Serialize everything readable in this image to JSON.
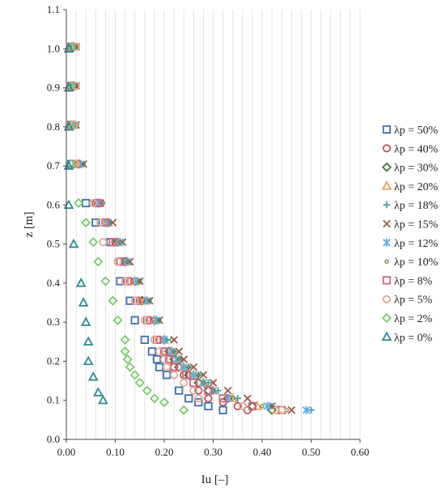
{
  "chart_data": {
    "type": "scatter",
    "xlabel": "Iu [–]",
    "ylabel": "z [m]",
    "xlim": [
      0,
      0.6
    ],
    "ylim": [
      0,
      1.1
    ],
    "xticks": [
      "0.00",
      "0.10",
      "0.20",
      "0.30",
      "0.40",
      "0.50",
      "0.60"
    ],
    "yticks": [
      "0.0",
      "0.1",
      "0.2",
      "0.3",
      "0.4",
      "0.5",
      "0.6",
      "0.7",
      "0.8",
      "0.9",
      "1.0",
      "1.1"
    ],
    "grid": "vertical",
    "legend_position": "right",
    "series": [
      {
        "name": "λp = 50%",
        "marker": "square",
        "color": "#3d6fb0",
        "points": [
          [
            0.01,
            1.005
          ],
          [
            0.01,
            0.905
          ],
          [
            0.01,
            0.805
          ],
          [
            0.01,
            0.705
          ],
          [
            0.04,
            0.605
          ],
          [
            0.06,
            0.555
          ],
          [
            0.09,
            0.505
          ],
          [
            0.11,
            0.455
          ],
          [
            0.11,
            0.405
          ],
          [
            0.13,
            0.355
          ],
          [
            0.14,
            0.305
          ],
          [
            0.16,
            0.255
          ],
          [
            0.175,
            0.225
          ],
          [
            0.185,
            0.205
          ],
          [
            0.19,
            0.185
          ],
          [
            0.205,
            0.165
          ],
          [
            0.23,
            0.125
          ],
          [
            0.25,
            0.105
          ],
          [
            0.27,
            0.095
          ],
          [
            0.29,
            0.085
          ],
          [
            0.32,
            0.075
          ]
        ]
      },
      {
        "name": "λp = 40%",
        "marker": "circle",
        "color": "#c0505a",
        "points": [
          [
            0.01,
            1.005
          ],
          [
            0.01,
            0.905
          ],
          [
            0.01,
            0.805
          ],
          [
            0.02,
            0.705
          ],
          [
            0.06,
            0.605
          ],
          [
            0.08,
            0.555
          ],
          [
            0.1,
            0.505
          ],
          [
            0.12,
            0.455
          ],
          [
            0.13,
            0.405
          ],
          [
            0.15,
            0.355
          ],
          [
            0.17,
            0.305
          ],
          [
            0.19,
            0.255
          ],
          [
            0.2,
            0.225
          ],
          [
            0.21,
            0.205
          ],
          [
            0.22,
            0.185
          ],
          [
            0.24,
            0.165
          ],
          [
            0.27,
            0.125
          ],
          [
            0.29,
            0.105
          ],
          [
            0.32,
            0.095
          ],
          [
            0.35,
            0.085
          ],
          [
            0.37,
            0.075
          ]
        ]
      },
      {
        "name": "λp = 30%",
        "marker": "diamond",
        "color": "#3d7a2e",
        "points": [
          [
            0.015,
            1.005
          ],
          [
            0.015,
            0.905
          ],
          [
            0.015,
            0.805
          ],
          [
            0.025,
            0.705
          ],
          [
            0.065,
            0.605
          ],
          [
            0.085,
            0.555
          ],
          [
            0.105,
            0.505
          ],
          [
            0.12,
            0.455
          ],
          [
            0.14,
            0.405
          ],
          [
            0.155,
            0.355
          ],
          [
            0.18,
            0.305
          ],
          [
            0.2,
            0.255
          ],
          [
            0.21,
            0.225
          ],
          [
            0.22,
            0.205
          ],
          [
            0.23,
            0.185
          ],
          [
            0.25,
            0.165
          ],
          [
            0.27,
            0.145
          ],
          [
            0.29,
            0.125
          ],
          [
            0.33,
            0.105
          ],
          [
            0.38,
            0.085
          ],
          [
            0.42,
            0.075
          ]
        ]
      },
      {
        "name": "λp = 20%",
        "marker": "triangle",
        "color": "#e8a060",
        "points": [
          [
            0.015,
            1.005
          ],
          [
            0.015,
            0.905
          ],
          [
            0.015,
            0.805
          ],
          [
            0.025,
            0.705
          ],
          [
            0.065,
            0.605
          ],
          [
            0.085,
            0.555
          ],
          [
            0.105,
            0.505
          ],
          [
            0.125,
            0.455
          ],
          [
            0.14,
            0.405
          ],
          [
            0.16,
            0.355
          ],
          [
            0.18,
            0.305
          ],
          [
            0.2,
            0.255
          ],
          [
            0.215,
            0.225
          ],
          [
            0.23,
            0.205
          ],
          [
            0.24,
            0.185
          ],
          [
            0.26,
            0.165
          ],
          [
            0.28,
            0.145
          ],
          [
            0.3,
            0.125
          ],
          [
            0.34,
            0.105
          ],
          [
            0.39,
            0.085
          ],
          [
            0.43,
            0.075
          ]
        ]
      },
      {
        "name": "λp = 18%",
        "marker": "plus",
        "color": "#4aa0a0",
        "points": [
          [
            0.015,
            1.005
          ],
          [
            0.015,
            0.905
          ],
          [
            0.02,
            0.805
          ],
          [
            0.03,
            0.705
          ],
          [
            0.07,
            0.605
          ],
          [
            0.09,
            0.555
          ],
          [
            0.11,
            0.505
          ],
          [
            0.125,
            0.455
          ],
          [
            0.145,
            0.405
          ],
          [
            0.165,
            0.355
          ],
          [
            0.185,
            0.305
          ],
          [
            0.205,
            0.255
          ],
          [
            0.22,
            0.225
          ],
          [
            0.235,
            0.205
          ],
          [
            0.25,
            0.185
          ],
          [
            0.27,
            0.165
          ],
          [
            0.29,
            0.145
          ],
          [
            0.31,
            0.125
          ],
          [
            0.35,
            0.105
          ],
          [
            0.42,
            0.085
          ],
          [
            0.5,
            0.075
          ]
        ]
      },
      {
        "name": "λp = 15%",
        "marker": "x",
        "color": "#9a5a4a",
        "points": [
          [
            0.02,
            1.005
          ],
          [
            0.02,
            0.905
          ],
          [
            0.02,
            0.805
          ],
          [
            0.035,
            0.705
          ],
          [
            0.07,
            0.605
          ],
          [
            0.095,
            0.555
          ],
          [
            0.115,
            0.505
          ],
          [
            0.13,
            0.455
          ],
          [
            0.15,
            0.405
          ],
          [
            0.17,
            0.355
          ],
          [
            0.19,
            0.305
          ],
          [
            0.22,
            0.255
          ],
          [
            0.23,
            0.225
          ],
          [
            0.24,
            0.205
          ],
          [
            0.26,
            0.185
          ],
          [
            0.28,
            0.165
          ],
          [
            0.3,
            0.145
          ],
          [
            0.33,
            0.125
          ],
          [
            0.37,
            0.105
          ],
          [
            0.42,
            0.085
          ],
          [
            0.46,
            0.075
          ]
        ]
      },
      {
        "name": "λp = 12%",
        "marker": "asterisk",
        "color": "#5bb0e8",
        "points": [
          [
            0.015,
            1.005
          ],
          [
            0.015,
            0.905
          ],
          [
            0.015,
            0.805
          ],
          [
            0.03,
            0.705
          ],
          [
            0.065,
            0.605
          ],
          [
            0.085,
            0.555
          ],
          [
            0.11,
            0.505
          ],
          [
            0.125,
            0.455
          ],
          [
            0.145,
            0.405
          ],
          [
            0.165,
            0.355
          ],
          [
            0.185,
            0.305
          ],
          [
            0.2,
            0.255
          ],
          [
            0.215,
            0.225
          ],
          [
            0.225,
            0.205
          ],
          [
            0.24,
            0.185
          ],
          [
            0.26,
            0.165
          ],
          [
            0.28,
            0.145
          ],
          [
            0.3,
            0.125
          ],
          [
            0.33,
            0.105
          ],
          [
            0.41,
            0.085
          ],
          [
            0.49,
            0.075
          ]
        ]
      },
      {
        "name": "λp = 10%",
        "marker": "dot",
        "color": "#6a7a2a",
        "points": [
          [
            0.02,
            1.005
          ],
          [
            0.02,
            0.905
          ],
          [
            0.02,
            0.805
          ],
          [
            0.035,
            0.705
          ],
          [
            0.075,
            0.605
          ],
          [
            0.09,
            0.555
          ],
          [
            0.11,
            0.505
          ],
          [
            0.125,
            0.455
          ],
          [
            0.15,
            0.405
          ],
          [
            0.17,
            0.355
          ],
          [
            0.19,
            0.305
          ],
          [
            0.215,
            0.255
          ],
          [
            0.22,
            0.225
          ],
          [
            0.23,
            0.205
          ],
          [
            0.25,
            0.185
          ],
          [
            0.27,
            0.165
          ],
          [
            0.28,
            0.145
          ],
          [
            0.3,
            0.125
          ],
          [
            0.34,
            0.105
          ],
          [
            0.4,
            0.085
          ],
          [
            0.45,
            0.075
          ]
        ]
      },
      {
        "name": "λp = 8%",
        "marker": "square",
        "color": "#d06088",
        "points": [
          [
            0.01,
            1.005
          ],
          [
            0.01,
            0.905
          ],
          [
            0.01,
            0.805
          ],
          [
            0.02,
            0.705
          ],
          [
            0.065,
            0.605
          ],
          [
            0.08,
            0.555
          ],
          [
            0.095,
            0.505
          ],
          [
            0.11,
            0.455
          ],
          [
            0.125,
            0.405
          ],
          [
            0.145,
            0.355
          ],
          [
            0.165,
            0.305
          ],
          [
            0.185,
            0.255
          ],
          [
            0.2,
            0.225
          ],
          [
            0.21,
            0.205
          ],
          [
            0.22,
            0.185
          ],
          [
            0.245,
            0.165
          ],
          [
            0.26,
            0.145
          ],
          [
            0.29,
            0.125
          ],
          [
            0.32,
            0.105
          ],
          [
            0.38,
            0.085
          ],
          [
            0.44,
            0.075
          ]
        ]
      },
      {
        "name": "λp = 5%",
        "marker": "circle",
        "color": "#e0a890",
        "points": [
          [
            0.02,
            1.005
          ],
          [
            0.02,
            0.905
          ],
          [
            0.015,
            0.805
          ],
          [
            0.02,
            0.705
          ],
          [
            0.055,
            0.605
          ],
          [
            0.07,
            0.555
          ],
          [
            0.075,
            0.505
          ],
          [
            0.105,
            0.455
          ],
          [
            0.12,
            0.405
          ],
          [
            0.14,
            0.355
          ],
          [
            0.16,
            0.305
          ],
          [
            0.18,
            0.255
          ],
          [
            0.19,
            0.225
          ],
          [
            0.2,
            0.205
          ],
          [
            0.205,
            0.185
          ],
          [
            0.22,
            0.165
          ],
          [
            0.24,
            0.145
          ],
          [
            0.26,
            0.125
          ],
          [
            0.27,
            0.105
          ],
          [
            0.36,
            0.085
          ],
          [
            0.44,
            0.075
          ]
        ]
      },
      {
        "name": "λp = 2%",
        "marker": "diamond",
        "color": "#7acc6a",
        "points": [
          [
            0.01,
            1.005
          ],
          [
            0.01,
            0.905
          ],
          [
            0.01,
            0.805
          ],
          [
            0.01,
            0.705
          ],
          [
            0.025,
            0.605
          ],
          [
            0.04,
            0.555
          ],
          [
            0.055,
            0.505
          ],
          [
            0.065,
            0.455
          ],
          [
            0.08,
            0.405
          ],
          [
            0.095,
            0.355
          ],
          [
            0.105,
            0.305
          ],
          [
            0.12,
            0.255
          ],
          [
            0.12,
            0.225
          ],
          [
            0.125,
            0.205
          ],
          [
            0.13,
            0.185
          ],
          [
            0.14,
            0.165
          ],
          [
            0.15,
            0.145
          ],
          [
            0.165,
            0.125
          ],
          [
            0.18,
            0.105
          ],
          [
            0.2,
            0.095
          ],
          [
            0.24,
            0.075
          ]
        ]
      },
      {
        "name": "λp = 0%",
        "marker": "triangle",
        "color": "#2e8a8e",
        "points": [
          [
            0.005,
            1.0
          ],
          [
            0.005,
            0.9
          ],
          [
            0.005,
            0.8
          ],
          [
            0.005,
            0.7
          ],
          [
            0.005,
            0.6
          ],
          [
            0.015,
            0.5
          ],
          [
            0.03,
            0.4
          ],
          [
            0.035,
            0.35
          ],
          [
            0.04,
            0.3
          ],
          [
            0.045,
            0.25
          ],
          [
            0.045,
            0.2
          ],
          [
            0.055,
            0.16
          ],
          [
            0.065,
            0.12
          ],
          [
            0.075,
            0.1
          ]
        ]
      }
    ]
  }
}
